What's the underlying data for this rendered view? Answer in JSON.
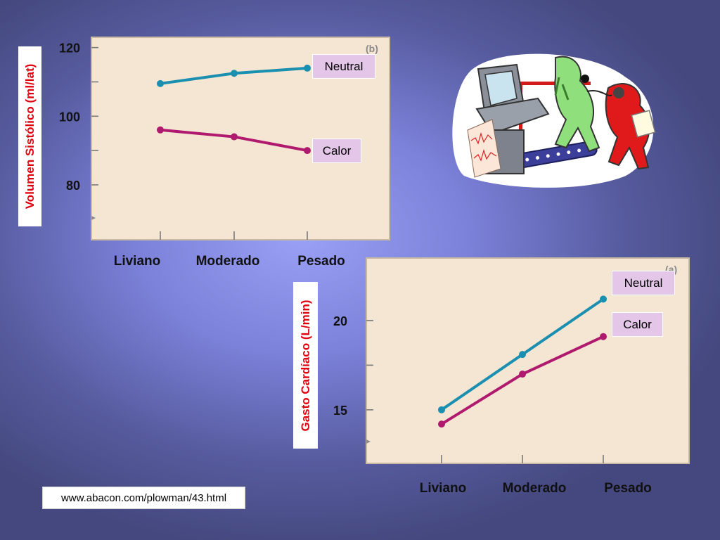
{
  "chart_data": [
    {
      "type": "line",
      "panel_marker": "(b)",
      "categories": [
        "Liviano",
        "Moderado",
        "Pesado"
      ],
      "ylabel": "Volumen Sistólico (ml/lat)",
      "xlabel": "",
      "yticks": [
        120,
        100,
        80
      ],
      "ylim": [
        64,
        123
      ],
      "grid": false,
      "series": [
        {
          "name": "Neutral",
          "color": "#1a8fb0",
          "values": [
            109.5,
            112.5,
            114
          ]
        },
        {
          "name": "Calor",
          "color": "#b01a6e",
          "values": [
            96,
            94,
            90
          ]
        }
      ]
    },
    {
      "type": "line",
      "panel_marker": "(a)",
      "categories": [
        "Liviano",
        "Moderado",
        "Pesado"
      ],
      "ylabel": "Gasto Cardíaco (L/min)",
      "xlabel": "",
      "yticks": [
        20,
        15
      ],
      "ylim": [
        12,
        23.5
      ],
      "grid": false,
      "series": [
        {
          "name": "Neutral",
          "color": "#1a8fb0",
          "values": [
            15,
            18.1,
            21.2
          ]
        },
        {
          "name": "Calor",
          "color": "#b01a6e",
          "values": [
            14.2,
            17,
            19.1
          ]
        }
      ]
    }
  ],
  "footer": {
    "url": "www.abacon.com/plowman/43.html"
  },
  "clipart": {
    "icon": "treadmill-doctor-illustration"
  }
}
